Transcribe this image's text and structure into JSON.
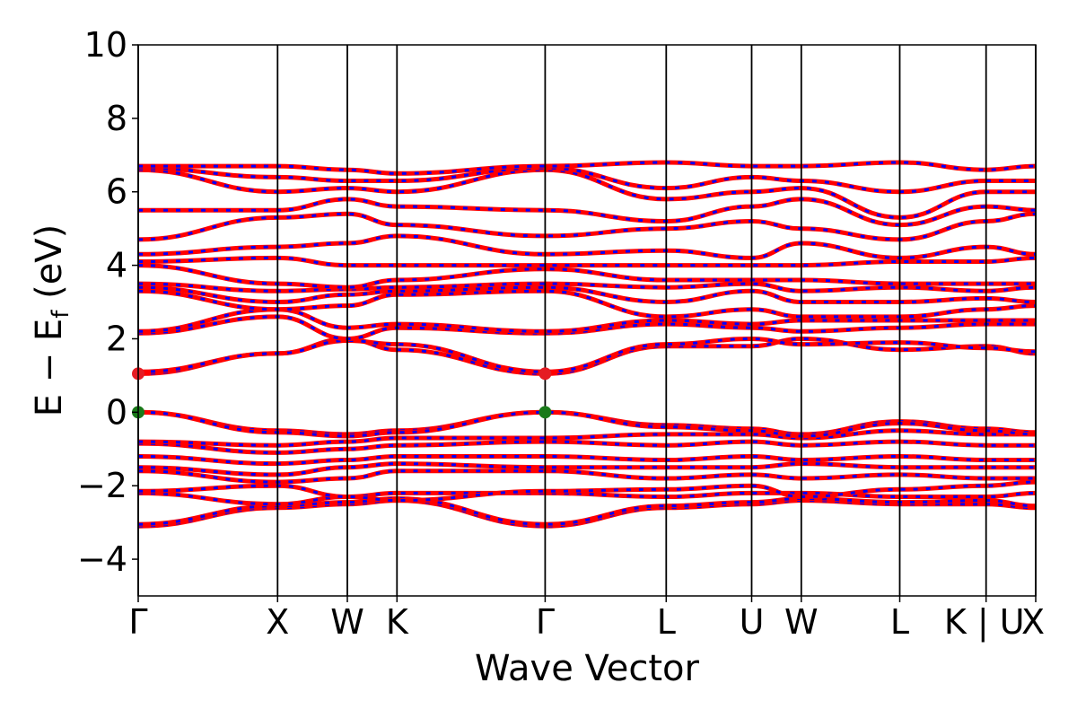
{
  "chart_data": {
    "type": "line",
    "title": "",
    "xlabel": "Wave Vector",
    "ylabel": "E − E_f (eV)",
    "ylabel_main": "E − E",
    "ylabel_sub": "f",
    "ylabel_unit": " (eV)",
    "ylim": [
      -5,
      10
    ],
    "yticks": [
      -4,
      -2,
      0,
      2,
      4,
      6,
      8,
      10
    ],
    "yticklabels": [
      "−4",
      "−2",
      "0",
      "2",
      "4",
      "6",
      "8",
      "10"
    ],
    "xlim": [
      0,
      1
    ],
    "kpoints": [
      {
        "label": "Γ",
        "x": 0.0
      },
      {
        "label": "X",
        "x": 0.1553
      },
      {
        "label": "W",
        "x": 0.233
      },
      {
        "label": "K",
        "x": 0.2883
      },
      {
        "label": "Γ",
        "x": 0.4534
      },
      {
        "label": "L",
        "x": 0.5883
      },
      {
        "label": "U",
        "x": 0.6835
      },
      {
        "label": "W",
        "x": 0.7388
      },
      {
        "label": "L",
        "x": 0.8485
      },
      {
        "label": "K | U",
        "x": 0.9447
      },
      {
        "label": "X",
        "x": 1.0
      }
    ],
    "grid": false,
    "legend": null,
    "series_style": {
      "line_color": "#ff0000",
      "dash_color": "#0000ff"
    },
    "extrema_markers": [
      {
        "kind": "cbm",
        "x": 0.0,
        "y": 1.05,
        "color": "#e51c23"
      },
      {
        "kind": "vbm",
        "x": 0.0,
        "y": 0.0,
        "color": "#1a7a1a"
      },
      {
        "kind": "cbm",
        "x": 0.4534,
        "y": 1.05,
        "color": "#e51c23"
      },
      {
        "kind": "vbm",
        "x": 0.4534,
        "y": 0.0,
        "color": "#1a7a1a"
      }
    ],
    "bands": [
      {
        "name": "",
        "values": [
          -3.1,
          -2.6,
          -2.5,
          -2.4,
          -3.1,
          -2.6,
          -2.5,
          -2.4,
          -2.5,
          -2.5,
          -2.6
        ]
      },
      {
        "name": "",
        "values": [
          -3.05,
          -2.55,
          -2.45,
          -2.35,
          -3.05,
          -2.55,
          -2.45,
          -2.35,
          -2.45,
          -2.4,
          -2.55
        ]
      },
      {
        "name": "",
        "values": [
          -2.2,
          -2.5,
          -2.3,
          -2.2,
          -2.2,
          -2.3,
          -2.2,
          -2.2,
          -2.3,
          -2.3,
          -2.2
        ]
      },
      {
        "name": "",
        "values": [
          -2.15,
          -2.0,
          -2.3,
          -2.4,
          -2.15,
          -2.1,
          -2.0,
          -2.3,
          -2.1,
          -2.0,
          -1.9
        ]
      },
      {
        "name": "",
        "values": [
          -1.6,
          -1.9,
          -1.8,
          -1.6,
          -1.6,
          -1.8,
          -1.7,
          -1.8,
          -1.7,
          -1.8,
          -1.8
        ]
      },
      {
        "name": "",
        "values": [
          -1.5,
          -1.7,
          -1.5,
          -1.4,
          -1.5,
          -1.5,
          -1.5,
          -1.4,
          -1.5,
          -1.5,
          -1.5
        ]
      },
      {
        "name": "",
        "values": [
          -1.2,
          -1.4,
          -1.3,
          -1.2,
          -1.2,
          -1.3,
          -1.2,
          -1.3,
          -1.2,
          -1.3,
          -1.3
        ]
      },
      {
        "name": "",
        "values": [
          -0.85,
          -1.1,
          -1.0,
          -0.9,
          -0.8,
          -0.9,
          -0.8,
          -0.9,
          -0.8,
          -0.9,
          -0.9
        ]
      },
      {
        "name": "",
        "values": [
          -0.8,
          -0.9,
          -0.8,
          -0.7,
          -0.7,
          -0.6,
          -0.6,
          -0.7,
          -0.5,
          -0.6,
          -0.6
        ]
      },
      {
        "name": "",
        "values": [
          0.0,
          -0.5,
          -0.6,
          -0.5,
          0.0,
          -0.35,
          -0.45,
          -0.6,
          -0.25,
          -0.45,
          -0.55
        ]
      },
      {
        "name": "",
        "values": [
          0.0,
          -0.55,
          -0.65,
          -0.55,
          0.0,
          -0.4,
          -0.5,
          -0.65,
          -0.3,
          -0.5,
          -0.6
        ]
      },
      {
        "name": "",
        "values": [
          1.05,
          1.6,
          2.0,
          1.7,
          1.05,
          1.8,
          1.8,
          2.0,
          1.7,
          1.8,
          1.6
        ]
      },
      {
        "name": "",
        "values": [
          1.1,
          1.6,
          1.95,
          1.85,
          1.1,
          1.85,
          2.0,
          1.85,
          1.9,
          1.75,
          1.65
        ]
      },
      {
        "name": "",
        "values": [
          2.15,
          2.6,
          2.0,
          2.3,
          2.15,
          2.4,
          2.3,
          2.2,
          2.3,
          2.4,
          2.4
        ]
      },
      {
        "name": "",
        "values": [
          2.2,
          2.8,
          2.3,
          2.4,
          2.2,
          2.5,
          2.4,
          2.5,
          2.5,
          2.5,
          2.5
        ]
      },
      {
        "name": "",
        "values": [
          3.3,
          2.8,
          2.9,
          3.2,
          3.3,
          2.6,
          2.8,
          2.6,
          2.6,
          2.8,
          2.9
        ]
      },
      {
        "name": "",
        "values": [
          3.4,
          3.0,
          3.2,
          3.3,
          3.4,
          3.0,
          3.3,
          3.0,
          3.0,
          3.1,
          3.0
        ]
      },
      {
        "name": "",
        "values": [
          3.5,
          3.3,
          3.35,
          3.4,
          3.5,
          3.4,
          3.5,
          3.3,
          3.4,
          3.3,
          3.4
        ]
      },
      {
        "name": "",
        "values": [
          4.0,
          3.5,
          3.4,
          3.6,
          3.9,
          3.6,
          3.6,
          3.6,
          3.5,
          3.5,
          3.5
        ]
      },
      {
        "name": "",
        "values": [
          4.1,
          4.2,
          4.0,
          4.0,
          4.0,
          4.0,
          4.0,
          4.0,
          4.1,
          4.1,
          4.2
        ]
      },
      {
        "name": "",
        "values": [
          4.3,
          4.5,
          4.6,
          4.8,
          4.3,
          4.4,
          4.2,
          4.6,
          4.2,
          4.5,
          4.3
        ]
      },
      {
        "name": "",
        "values": [
          4.7,
          5.3,
          5.4,
          5.1,
          4.8,
          5.0,
          5.2,
          5.0,
          4.7,
          5.2,
          5.4
        ]
      },
      {
        "name": "",
        "values": [
          5.5,
          5.5,
          5.8,
          5.6,
          5.5,
          5.2,
          5.6,
          5.8,
          5.1,
          5.6,
          5.5
        ]
      },
      {
        "name": "",
        "values": [
          6.6,
          6.0,
          6.1,
          6.0,
          6.6,
          5.8,
          6.0,
          6.1,
          5.3,
          6.0,
          6.0
        ]
      },
      {
        "name": "",
        "values": [
          6.65,
          6.4,
          6.3,
          6.3,
          6.65,
          6.1,
          6.4,
          6.3,
          6.0,
          6.3,
          6.3
        ]
      },
      {
        "name": "",
        "values": [
          6.7,
          6.7,
          6.6,
          6.5,
          6.7,
          6.8,
          6.7,
          6.7,
          6.8,
          6.6,
          6.7
        ]
      }
    ]
  }
}
